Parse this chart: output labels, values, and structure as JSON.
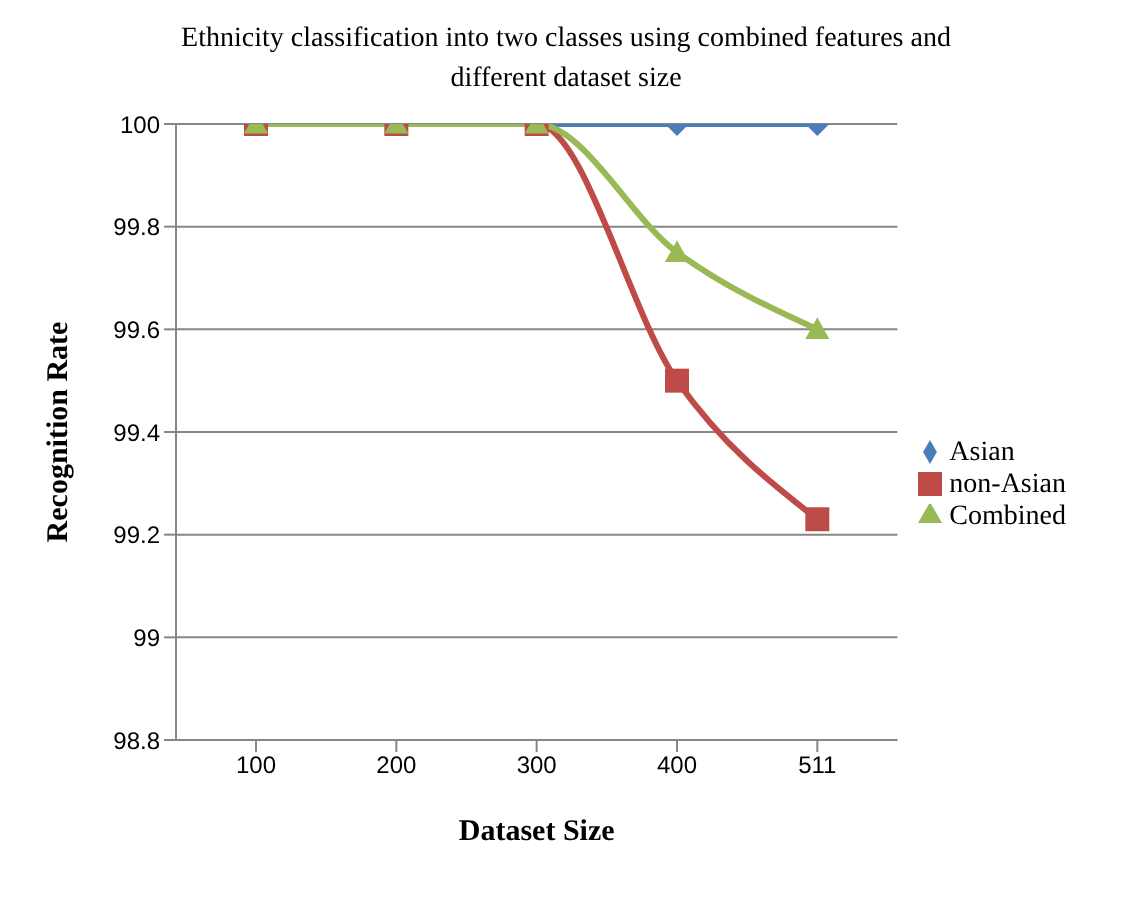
{
  "chart_data": {
    "type": "line",
    "title": "Ethnicity  classification into two classes using combined features and different dataset size",
    "xlabel": "Dataset Size",
    "ylabel": "Recognition Rate",
    "categories": [
      "100",
      "200",
      "300",
      "400",
      "511"
    ],
    "series": [
      {
        "name": "Asian",
        "color": "#4a7ebb",
        "marker": "diamond",
        "values": [
          100,
          100,
          100,
          100,
          100
        ]
      },
      {
        "name": "non-Asian",
        "color": "#be4b48",
        "marker": "square",
        "values": [
          100,
          100,
          100,
          99.5,
          99.23
        ]
      },
      {
        "name": "Combined",
        "color": "#98b954",
        "marker": "triangle",
        "values": [
          100,
          100,
          100,
          99.75,
          99.6
        ]
      }
    ],
    "ylim": [
      98.8,
      100
    ],
    "yticks": [
      98.8,
      99,
      99.2,
      99.4,
      99.6,
      99.8,
      100
    ],
    "grid": "y",
    "legend": "right"
  }
}
